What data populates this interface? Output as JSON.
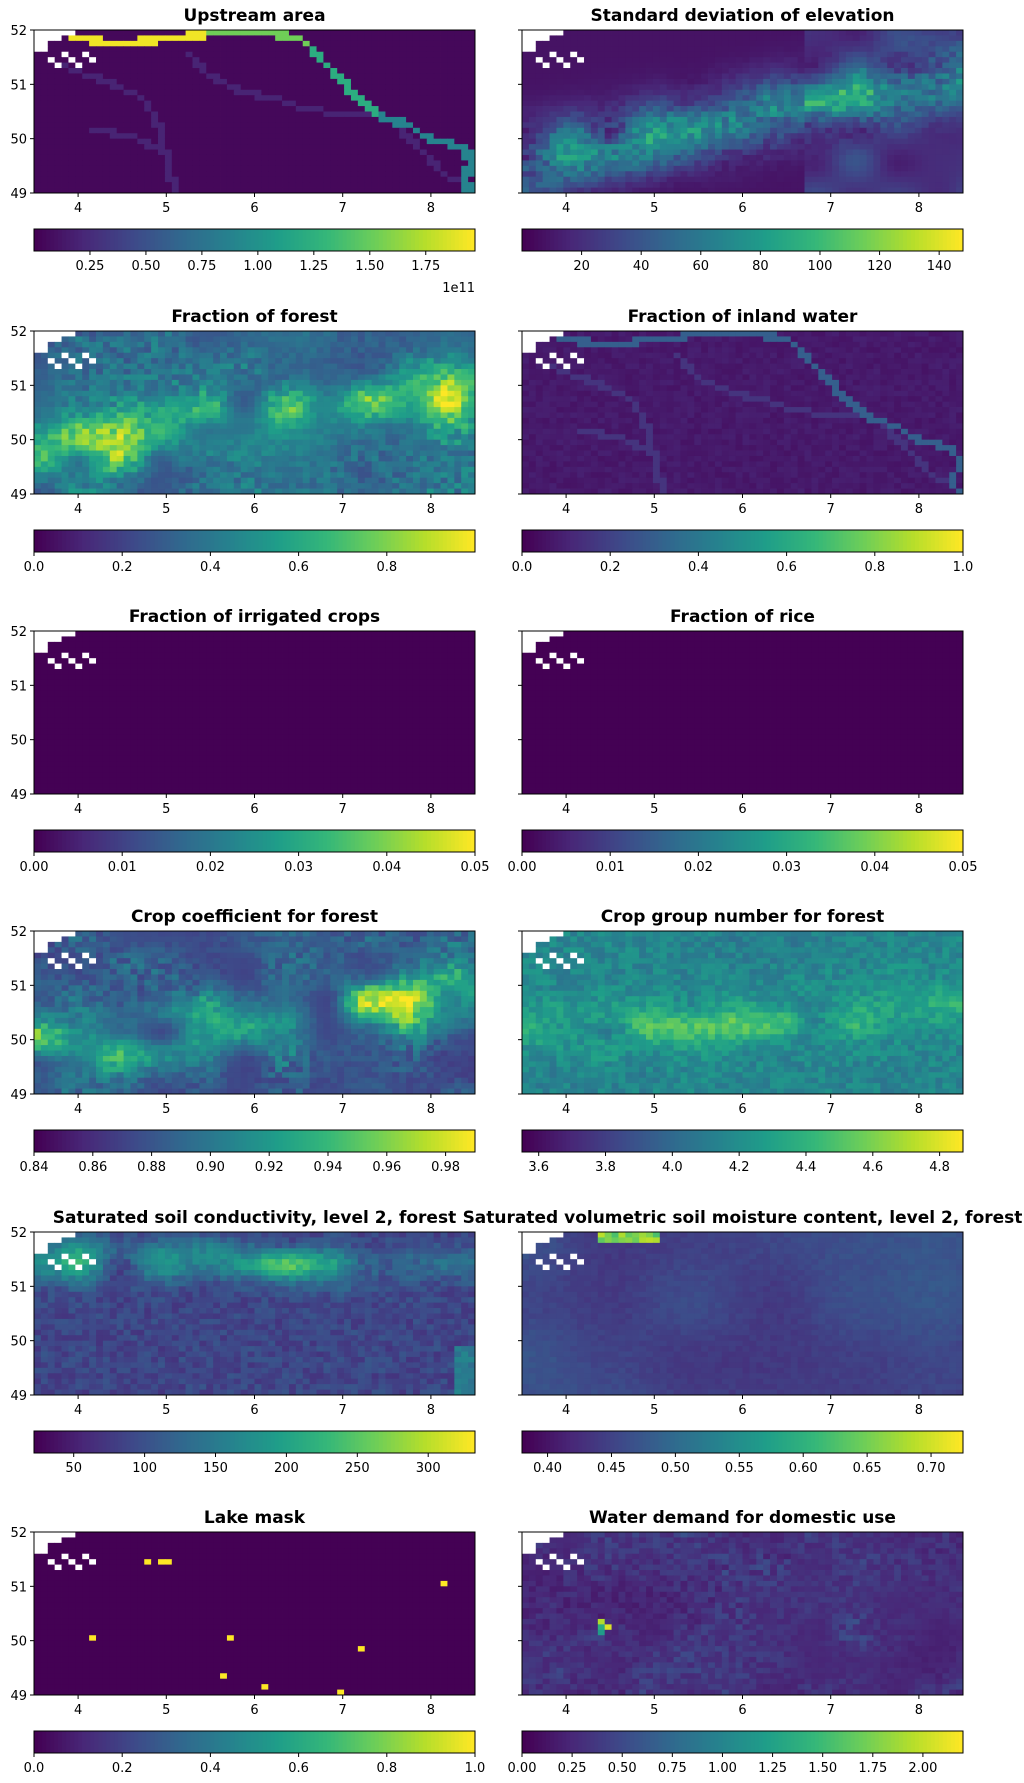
{
  "figure": {
    "map_xlim": [
      3.5,
      8.5
    ],
    "map_ylim": [
      49,
      52
    ],
    "map_xticks": [
      4,
      5,
      6,
      7,
      8
    ],
    "map_yticks": [
      49,
      50,
      51,
      52
    ],
    "colormap": "viridis",
    "colormap_stops": [
      "#440154",
      "#482878",
      "#3e4989",
      "#31688e",
      "#26828e",
      "#1f9e89",
      "#35b779",
      "#6ece58",
      "#b5de2b",
      "#fde725"
    ],
    "nodata_color": "#ffffff"
  },
  "chart_data": [
    {
      "type": "heatmap",
      "title": "Upstream area",
      "cbar_range": [
        0,
        197000000000.0
      ],
      "cbar_ticks": [
        "0.25",
        "0.50",
        "0.75",
        "1.00",
        "1.25",
        "1.50",
        "1.75"
      ],
      "cbar_tick_values": [
        0.25,
        0.5,
        0.75,
        1.0,
        1.25,
        1.5,
        1.75
      ],
      "cbar_scale_factor": "1e11",
      "cbar_multiplier_label": "1e11"
    },
    {
      "type": "heatmap",
      "title": "Standard deviation of elevation",
      "cbar_range": [
        0,
        148
      ],
      "cbar_ticks": [
        "20",
        "40",
        "60",
        "80",
        "100",
        "120",
        "140"
      ],
      "cbar_tick_values": [
        20,
        40,
        60,
        80,
        100,
        120,
        140
      ]
    },
    {
      "type": "heatmap",
      "title": "Fraction of forest",
      "cbar_range": [
        0,
        1.0
      ],
      "cbar_ticks": [
        "0.0",
        "0.2",
        "0.4",
        "0.6",
        "0.8"
      ],
      "cbar_tick_values": [
        0.0,
        0.2,
        0.4,
        0.6,
        0.8
      ]
    },
    {
      "type": "heatmap",
      "title": "Fraction of inland water",
      "cbar_range": [
        0,
        1.0
      ],
      "cbar_ticks": [
        "0.0",
        "0.2",
        "0.4",
        "0.6",
        "0.8",
        "1.0"
      ],
      "cbar_tick_values": [
        0.0,
        0.2,
        0.4,
        0.6,
        0.8,
        1.0
      ]
    },
    {
      "type": "heatmap",
      "title": "Fraction of irrigated crops",
      "cbar_range": [
        0,
        0.05
      ],
      "cbar_ticks": [
        "0.00",
        "0.01",
        "0.02",
        "0.03",
        "0.04",
        "0.05"
      ],
      "cbar_tick_values": [
        0.0,
        0.01,
        0.02,
        0.03,
        0.04,
        0.05
      ]
    },
    {
      "type": "heatmap",
      "title": "Fraction of rice",
      "cbar_range": [
        0,
        0.05
      ],
      "cbar_ticks": [
        "0.00",
        "0.01",
        "0.02",
        "0.03",
        "0.04",
        "0.05"
      ],
      "cbar_tick_values": [
        0.0,
        0.01,
        0.02,
        0.03,
        0.04,
        0.05
      ]
    },
    {
      "type": "heatmap",
      "title": "Crop coefficient for forest",
      "cbar_range": [
        0.84,
        0.99
      ],
      "cbar_ticks": [
        "0.84",
        "0.86",
        "0.88",
        "0.90",
        "0.92",
        "0.94",
        "0.96",
        "0.98"
      ],
      "cbar_tick_values": [
        0.84,
        0.86,
        0.88,
        0.9,
        0.92,
        0.94,
        0.96,
        0.98
      ]
    },
    {
      "type": "heatmap",
      "title": "Crop group number for forest",
      "cbar_range": [
        3.55,
        4.87
      ],
      "cbar_ticks": [
        "3.6",
        "3.8",
        "4.0",
        "4.2",
        "4.4",
        "4.6",
        "4.8"
      ],
      "cbar_tick_values": [
        3.6,
        3.8,
        4.0,
        4.2,
        4.4,
        4.6,
        4.8
      ]
    },
    {
      "type": "heatmap",
      "title": "Saturated soil conductivity, level 2, forest",
      "cbar_range": [
        22,
        333
      ],
      "cbar_ticks": [
        "50",
        "100",
        "150",
        "200",
        "250",
        "300"
      ],
      "cbar_tick_values": [
        50,
        100,
        150,
        200,
        250,
        300
      ]
    },
    {
      "type": "heatmap",
      "title": "Saturated volumetric soil moisture content, level 2, forest",
      "cbar_range": [
        0.38,
        0.725
      ],
      "cbar_ticks": [
        "0.40",
        "0.45",
        "0.50",
        "0.55",
        "0.60",
        "0.65",
        "0.70"
      ],
      "cbar_tick_values": [
        0.4,
        0.45,
        0.5,
        0.55,
        0.6,
        0.65,
        0.7
      ]
    },
    {
      "type": "heatmap",
      "title": "Lake mask",
      "cbar_range": [
        0,
        1.0
      ],
      "cbar_ticks": [
        "0.0",
        "0.2",
        "0.4",
        "0.6",
        "0.8",
        "1.0"
      ],
      "cbar_tick_values": [
        0.0,
        0.2,
        0.4,
        0.6,
        0.8,
        1.0
      ]
    },
    {
      "type": "heatmap",
      "title": "Water demand for domestic use",
      "cbar_range": [
        0,
        2.2
      ],
      "cbar_ticks": [
        "0.00",
        "0.25",
        "0.50",
        "0.75",
        "1.00",
        "1.25",
        "1.50",
        "1.75",
        "2.00"
      ],
      "cbar_tick_values": [
        0.0,
        0.25,
        0.5,
        0.75,
        1.0,
        1.25,
        1.5,
        1.75,
        2.0
      ]
    }
  ]
}
